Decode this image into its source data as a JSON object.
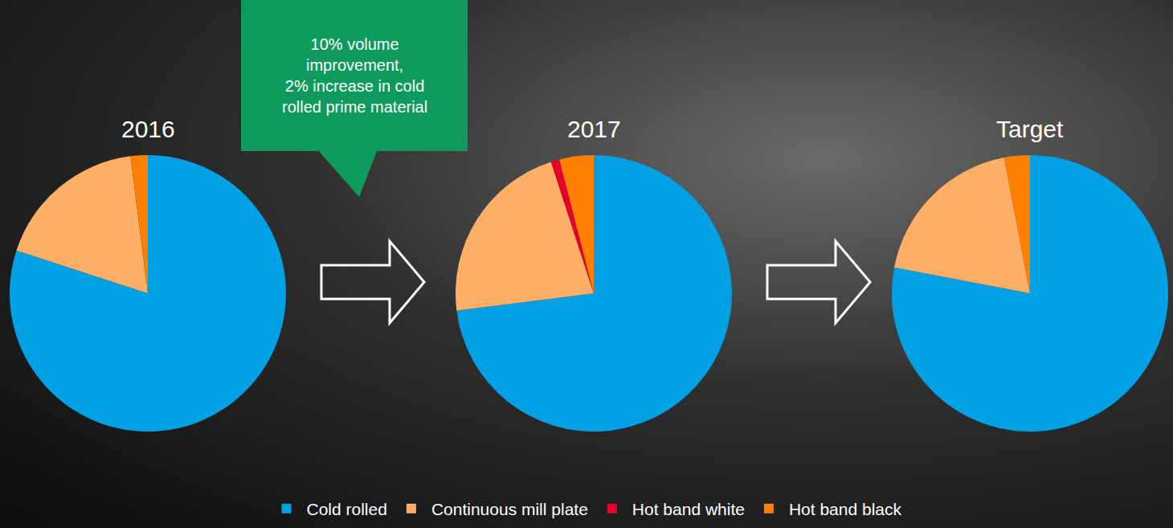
{
  "chart_data": {
    "type": "pie",
    "categories": [
      "Cold rolled",
      "Continuous mill plate",
      "Hot band white",
      "Hot band black"
    ],
    "colors": [
      "#00a1e4",
      "#ffae66",
      "#e4002b",
      "#ff7f00"
    ],
    "legend": "bottom",
    "data_labels": false,
    "series": [
      {
        "name": "2016",
        "values": [
          80,
          18,
          0,
          2
        ]
      },
      {
        "name": "2017",
        "values": [
          73,
          22,
          1,
          4
        ]
      },
      {
        "name": "Target",
        "values": [
          78,
          19,
          0,
          3
        ]
      }
    ],
    "annotations": [
      {
        "lines": [
          "10% volume",
          "improvement,",
          "2% increase in cold",
          "rolled prime material"
        ]
      }
    ]
  }
}
